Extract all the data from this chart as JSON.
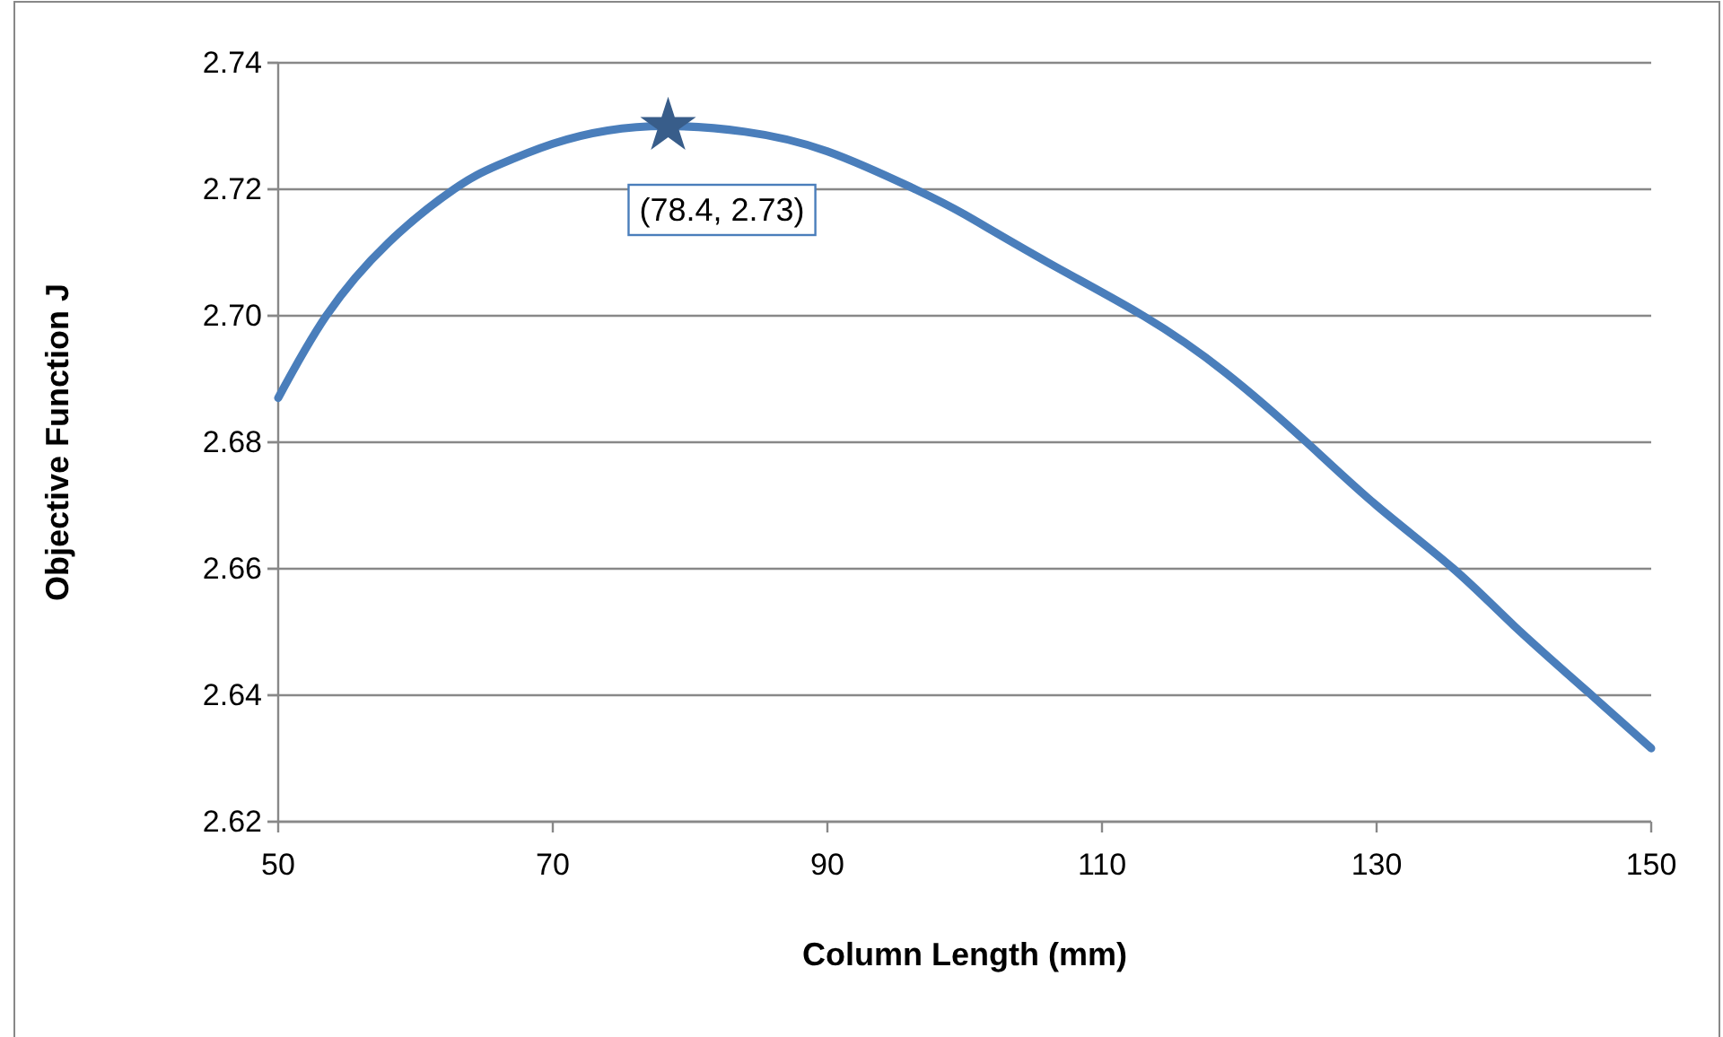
{
  "chart_data": {
    "type": "line",
    "xlabel": "Column Length (mm)",
    "ylabel": "Objective Function J",
    "xlim": [
      50,
      150
    ],
    "xticks": [
      50,
      70,
      90,
      110,
      130,
      150
    ],
    "ylim": [
      2.62,
      2.74
    ],
    "yticks": [
      {
        "value": 2.62,
        "label": "2.62"
      },
      {
        "value": 2.64,
        "label": "2.64"
      },
      {
        "value": 2.66,
        "label": "2.66"
      },
      {
        "value": 2.68,
        "label": "2.68"
      },
      {
        "value": 2.7,
        "label": "2.70"
      },
      {
        "value": 2.72,
        "label": "2.72"
      },
      {
        "value": 2.74,
        "label": "2.74"
      }
    ],
    "grid": "y",
    "series": [
      {
        "color": "#4a7ebb",
        "marker": "none",
        "line_style": "solid",
        "x": [
          50,
          53.5,
          58,
          62.8,
          66,
          70,
          74,
          78.4,
          84,
          90,
          96.4,
          100,
          106,
          113,
          119,
          124.9,
          130,
          135.6,
          140,
          145.4,
          150
        ],
        "values": [
          2.687,
          2.7,
          2.7115,
          2.72,
          2.7238,
          2.7272,
          2.7293,
          2.73,
          2.7291,
          2.726,
          2.72,
          2.716,
          2.7085,
          2.7,
          2.691,
          2.68,
          2.67,
          2.66,
          2.651,
          2.6405,
          2.6316
        ]
      },
      {
        "type": "scatter",
        "color": "#385d8a",
        "marker": "star",
        "x": [
          78.4
        ],
        "values": [
          2.73
        ]
      }
    ],
    "annotations": [
      {
        "text": "(78.4, 2.73)",
        "x": 78.4,
        "y": 2.73
      }
    ]
  }
}
